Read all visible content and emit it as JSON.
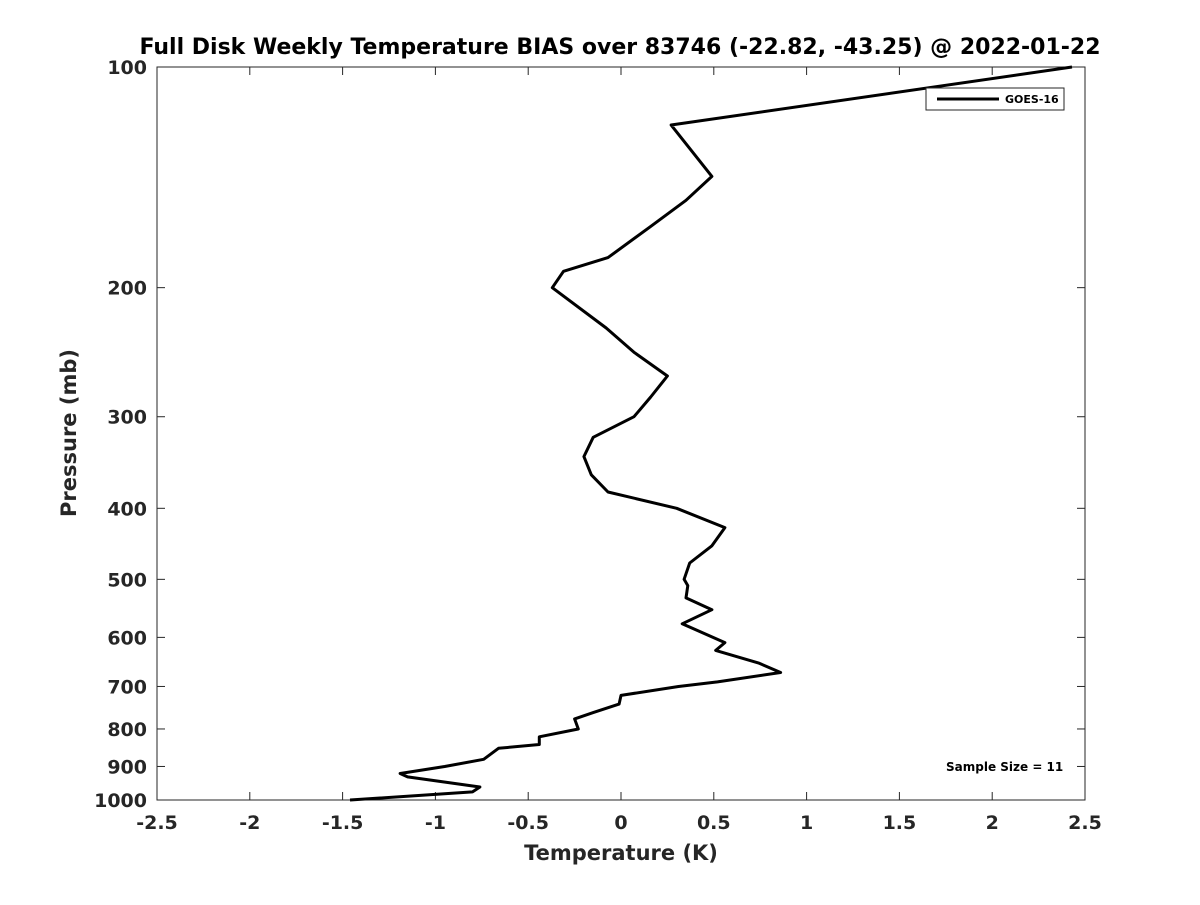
{
  "chart_data": {
    "type": "line",
    "title": "Full Disk Weekly Temperature BIAS over 83746 (-22.82, -43.25) @ 2022-01-22",
    "xlabel": "Temperature (K)",
    "ylabel": "Pressure (mb)",
    "xlim": [
      -2.5,
      2.5
    ],
    "ylim": [
      1000,
      100
    ],
    "yscale": "log",
    "y_reversed": true,
    "x_ticks": [
      "-2.5",
      "-2",
      "-1.5",
      "-1",
      "-0.5",
      "0",
      "0.5",
      "1",
      "1.5",
      "2",
      "2.5"
    ],
    "x_tick_values": [
      -2.5,
      -2,
      -1.5,
      -1,
      -0.5,
      0,
      0.5,
      1,
      1.5,
      2,
      2.5
    ],
    "y_ticks": [
      "100",
      "200",
      "300",
      "400",
      "500",
      "600",
      "700",
      "800",
      "900",
      "1000"
    ],
    "y_tick_values": [
      100,
      200,
      300,
      400,
      500,
      600,
      700,
      800,
      900,
      1000
    ],
    "grid": false,
    "legend_position": "top-right",
    "series": [
      {
        "name": "GOES-16",
        "color": "#000000",
        "points": [
          [
            2.43,
            100
          ],
          [
            0.27,
            120
          ],
          [
            0.49,
            141
          ],
          [
            0.35,
            152
          ],
          [
            0.16,
            165
          ],
          [
            -0.07,
            182
          ],
          [
            -0.31,
            190
          ],
          [
            -0.37,
            200
          ],
          [
            -0.08,
            227
          ],
          [
            0.07,
            245
          ],
          [
            0.25,
            264
          ],
          [
            0.16,
            282
          ],
          [
            0.07,
            300
          ],
          [
            -0.15,
            320
          ],
          [
            -0.2,
            340
          ],
          [
            -0.16,
            360
          ],
          [
            -0.07,
            380
          ],
          [
            0.3,
            400
          ],
          [
            0.56,
            425
          ],
          [
            0.49,
            450
          ],
          [
            0.37,
            475
          ],
          [
            0.34,
            500
          ],
          [
            0.36,
            510
          ],
          [
            0.35,
            530
          ],
          [
            0.49,
            550
          ],
          [
            0.33,
            575
          ],
          [
            0.56,
            610
          ],
          [
            0.51,
            625
          ],
          [
            0.74,
            650
          ],
          [
            0.86,
            670
          ],
          [
            0.52,
            690
          ],
          [
            0.31,
            700
          ],
          [
            0.0,
            720
          ],
          [
            -0.01,
            740
          ],
          [
            -0.15,
            760
          ],
          [
            -0.25,
            775
          ],
          [
            -0.23,
            800
          ],
          [
            -0.44,
            820
          ],
          [
            -0.44,
            840
          ],
          [
            -0.66,
            850
          ],
          [
            -0.74,
            880
          ],
          [
            -0.95,
            900
          ],
          [
            -1.19,
            920
          ],
          [
            -1.15,
            930
          ],
          [
            -0.76,
            960
          ],
          [
            -0.8,
            975
          ],
          [
            -1.46,
            1000
          ]
        ]
      }
    ],
    "annotation": "Sample Size = 11"
  }
}
